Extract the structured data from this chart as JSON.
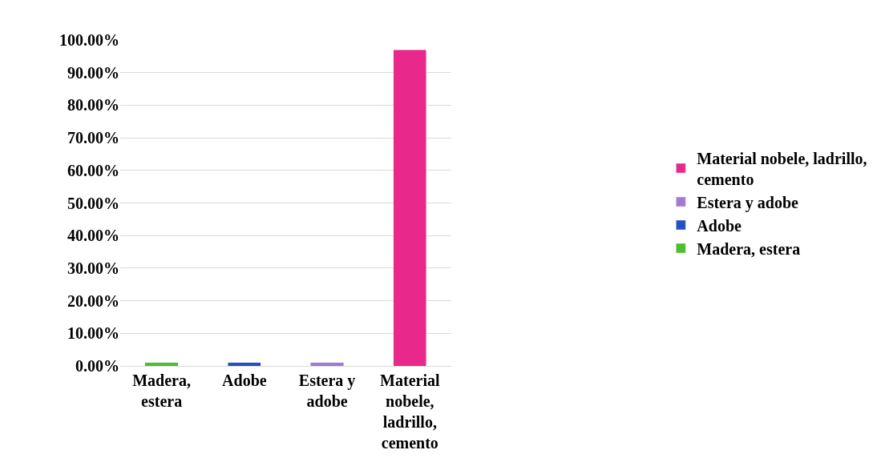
{
  "chart_data": {
    "type": "bar",
    "stacked": true,
    "categories": [
      "Madera, estera",
      "Adobe",
      "Estera y adobe",
      "Material nobele, ladrillo, cemento"
    ],
    "series": [
      {
        "name": "Madera, estera",
        "color": "#4cbf2a",
        "values": [
          1,
          null,
          null,
          null
        ]
      },
      {
        "name": "Adobe",
        "color": "#2450c0",
        "values": [
          null,
          1,
          null,
          null
        ]
      },
      {
        "name": "Estera y adobe",
        "color": "#a47ad0",
        "values": [
          null,
          null,
          1,
          null
        ]
      },
      {
        "name": "Material nobele, ladrillo, cemento",
        "color": "#e8288a",
        "values": [
          null,
          null,
          null,
          97
        ]
      }
    ],
    "ylim": [
      0,
      100
    ],
    "yticks": [
      {
        "value": 0,
        "label": "0.00%"
      },
      {
        "value": 10,
        "label": "10.00%"
      },
      {
        "value": 20,
        "label": "20.00%"
      },
      {
        "value": 30,
        "label": "30.00%"
      },
      {
        "value": 40,
        "label": "40.00%"
      },
      {
        "value": 50,
        "label": "50.00%"
      },
      {
        "value": 60,
        "label": "60.00%"
      },
      {
        "value": 70,
        "label": "70.00%"
      },
      {
        "value": 80,
        "label": "80.00%"
      },
      {
        "value": 90,
        "label": "90.00%"
      },
      {
        "value": 100,
        "label": "100.00%"
      }
    ],
    "grid": "y",
    "legend": "right"
  }
}
